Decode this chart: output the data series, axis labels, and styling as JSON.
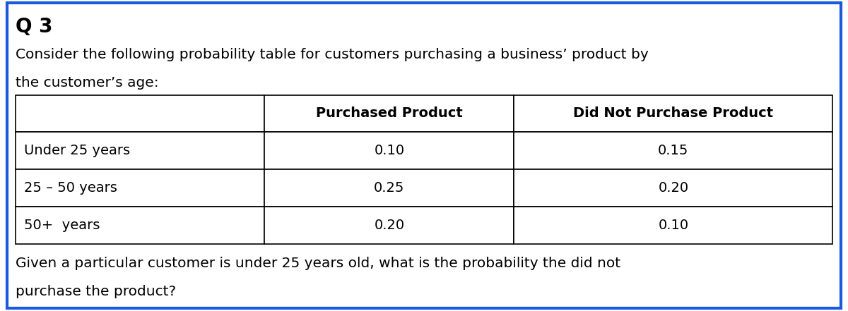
{
  "title": "Q 3",
  "line1": "Consider the following probability table for customers purchasing a business’ product by",
  "line2": "the customer’s age:",
  "col_headers": [
    "",
    "Purchased Product",
    "Did Not Purchase Product"
  ],
  "row_labels": [
    "Under 25 years",
    "25 – 50 years",
    "50+  years"
  ],
  "table_data": [
    [
      "0.10",
      "0.15"
    ],
    [
      "0.25",
      "0.20"
    ],
    [
      "0.20",
      "0.10"
    ]
  ],
  "question_line1": "Given a particular customer is under 25 years old, what is the probability the did not",
  "question_line2": "purchase the product?",
  "bg_color": "#ffffff",
  "border_color": "#1a5adc",
  "text_color": "#000000",
  "font_size_title": 20,
  "font_size_body": 14.5,
  "font_size_table_header": 14,
  "font_size_table_data": 14
}
